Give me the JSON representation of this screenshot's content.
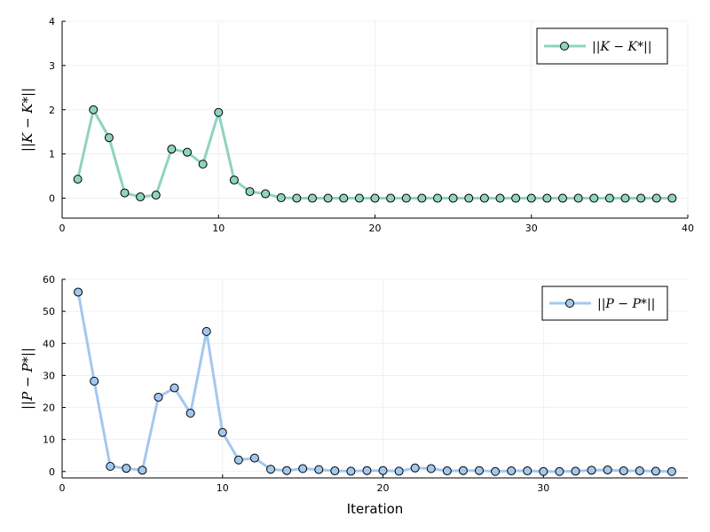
{
  "chart_data": [
    {
      "type": "line",
      "title": "",
      "xlabel": "",
      "ylabel": "||K − K*||",
      "xlim": [
        0,
        40
      ],
      "ylim": [
        -0.45,
        4
      ],
      "xticks": [
        0,
        10,
        20,
        30,
        40
      ],
      "yticks": [
        0,
        1,
        2,
        3,
        4
      ],
      "grid": true,
      "legend_position": "top-right",
      "color": "#8fd3c2",
      "series": [
        {
          "name": "||K − K*||",
          "x": [
            1,
            2,
            3,
            4,
            5,
            6,
            7,
            8,
            9,
            10,
            11,
            12,
            13,
            14,
            15,
            16,
            17,
            18,
            19,
            20,
            21,
            22,
            23,
            24,
            25,
            26,
            27,
            28,
            29,
            30,
            31,
            32,
            33,
            34,
            35,
            36,
            37,
            38,
            39
          ],
          "values": [
            0.43,
            2.0,
            1.37,
            0.12,
            0.03,
            0.07,
            1.11,
            1.04,
            0.77,
            1.94,
            0.41,
            0.15,
            0.1,
            0.01,
            0.0,
            0.0,
            0.0,
            0.0,
            0.0,
            0.0,
            0.0,
            0.0,
            0.0,
            0.0,
            0.0,
            0.0,
            0.0,
            0.0,
            0.0,
            0.0,
            0.0,
            0.0,
            0.0,
            0.0,
            0.0,
            0.0,
            0.0,
            0.0,
            0.0
          ]
        }
      ]
    },
    {
      "type": "line",
      "title": "",
      "xlabel": "Iteration",
      "ylabel": "||P − P*||",
      "xlim": [
        0,
        39
      ],
      "ylim": [
        -2,
        60
      ],
      "xticks": [
        0,
        10,
        20,
        30
      ],
      "yticks": [
        0,
        10,
        20,
        30,
        40,
        50,
        60
      ],
      "grid": true,
      "legend_position": "top-right",
      "color": "#a3c8ee",
      "series": [
        {
          "name": "||P − P*||",
          "x": [
            1,
            2,
            3,
            4,
            5,
            6,
            7,
            8,
            9,
            10,
            11,
            12,
            13,
            14,
            15,
            16,
            17,
            18,
            19,
            20,
            21,
            22,
            23,
            24,
            25,
            26,
            27,
            28,
            29,
            30,
            31,
            32,
            33,
            34,
            35,
            36,
            37,
            38
          ],
          "values": [
            56,
            28.2,
            1.6,
            1.0,
            0.4,
            23.2,
            26.1,
            18.2,
            43.7,
            12.2,
            3.6,
            4.2,
            0.7,
            0.3,
            0.9,
            0.6,
            0.2,
            0.1,
            0.3,
            0.3,
            0.1,
            1.1,
            0.9,
            0.2,
            0.3,
            0.3,
            0.0,
            0.2,
            0.2,
            0.0,
            0.0,
            0.1,
            0.4,
            0.5,
            0.2,
            0.2,
            0.1,
            0.0
          ]
        }
      ]
    }
  ]
}
